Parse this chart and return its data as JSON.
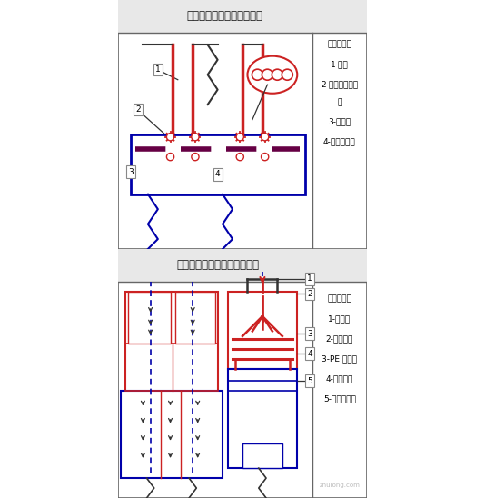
{
  "title1": "桥架进出配电柜的连接方法",
  "title2": "母线进出配电笱柜的连接方法",
  "legend1_title": "符号说明：",
  "legend1": [
    "1-桥架",
    "2-螺母螺栓弹平",
    "垫",
    "3-配电柜",
    "4-锁母、根母"
  ],
  "legend2_title": "符号说明：",
  "legend2": [
    "1-进线筱",
    "2-六角螺栓",
    "3-PE 母线排",
    "4-相线母排",
    "5-低压配电柜"
  ],
  "red": "#cc2222",
  "blue": "#0000aa",
  "dark": "#333333",
  "gray": "#aaaaaa",
  "lightgray": "#e8e8e8",
  "border": "#666666",
  "purple": "#660066",
  "watermark": "zhulong.com"
}
